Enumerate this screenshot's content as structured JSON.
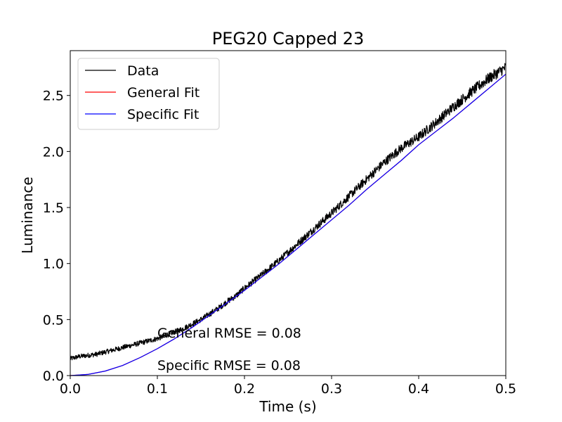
{
  "chart_data": {
    "type": "line",
    "title": "PEG20 Capped 23",
    "xlabel": "Time (s)",
    "ylabel": "Luminance",
    "xlim": [
      0.0,
      0.5
    ],
    "ylim": [
      0.0,
      2.9
    ],
    "xticks": [
      0.0,
      0.1,
      0.2,
      0.3,
      0.4,
      0.5
    ],
    "xtick_labels": [
      "0.0",
      "0.1",
      "0.2",
      "0.3",
      "0.4",
      "0.5"
    ],
    "yticks": [
      0.0,
      0.5,
      1.0,
      1.5,
      2.0,
      2.5
    ],
    "ytick_labels": [
      "0.0",
      "0.5",
      "1.0",
      "1.5",
      "2.0",
      "2.5"
    ],
    "grid": false,
    "legend_position": "upper-left",
    "series": [
      {
        "name": "Data",
        "color": "#000000",
        "noisy": true,
        "x": [
          0.0,
          0.01,
          0.02,
          0.03,
          0.04,
          0.05,
          0.06,
          0.07,
          0.08,
          0.09,
          0.1,
          0.11,
          0.12,
          0.13,
          0.14,
          0.15,
          0.16,
          0.17,
          0.18,
          0.19,
          0.2,
          0.22,
          0.24,
          0.26,
          0.28,
          0.3,
          0.32,
          0.34,
          0.36,
          0.38,
          0.4,
          0.42,
          0.44,
          0.46,
          0.48,
          0.5
        ],
        "y": [
          0.15,
          0.17,
          0.18,
          0.19,
          0.21,
          0.23,
          0.25,
          0.27,
          0.29,
          0.31,
          0.33,
          0.36,
          0.39,
          0.42,
          0.46,
          0.5,
          0.55,
          0.6,
          0.66,
          0.71,
          0.78,
          0.9,
          1.03,
          1.17,
          1.31,
          1.45,
          1.6,
          1.75,
          1.9,
          2.03,
          2.13,
          2.26,
          2.4,
          2.53,
          2.65,
          2.75
        ]
      },
      {
        "name": "General Fit",
        "color": "#ff0000",
        "x": [
          0.0,
          0.02,
          0.04,
          0.06,
          0.08,
          0.1,
          0.12,
          0.14,
          0.16,
          0.18,
          0.2,
          0.22,
          0.24,
          0.26,
          0.28,
          0.3,
          0.32,
          0.34,
          0.36,
          0.38,
          0.4,
          0.42,
          0.44,
          0.46,
          0.48,
          0.5
        ],
        "y": [
          0.0,
          0.01,
          0.04,
          0.09,
          0.16,
          0.24,
          0.33,
          0.43,
          0.54,
          0.65,
          0.76,
          0.88,
          1.0,
          1.13,
          1.26,
          1.39,
          1.52,
          1.66,
          1.79,
          1.92,
          2.06,
          2.18,
          2.3,
          2.43,
          2.56,
          2.69
        ]
      },
      {
        "name": "Specific Fit",
        "color": "#0000ff",
        "x": [
          0.0,
          0.02,
          0.04,
          0.06,
          0.08,
          0.1,
          0.12,
          0.14,
          0.16,
          0.18,
          0.2,
          0.22,
          0.24,
          0.26,
          0.28,
          0.3,
          0.32,
          0.34,
          0.36,
          0.38,
          0.4,
          0.42,
          0.44,
          0.46,
          0.48,
          0.5
        ],
        "y": [
          0.0,
          0.01,
          0.04,
          0.09,
          0.16,
          0.24,
          0.33,
          0.43,
          0.54,
          0.65,
          0.76,
          0.88,
          1.0,
          1.13,
          1.26,
          1.39,
          1.52,
          1.66,
          1.79,
          1.92,
          2.06,
          2.18,
          2.3,
          2.43,
          2.56,
          2.69
        ]
      }
    ],
    "annotations": [
      {
        "text": "General RMSE = 0.08",
        "x": 0.1,
        "y": 0.34
      },
      {
        "text": "Specific RMSE = 0.08",
        "x": 0.1,
        "y": 0.05
      }
    ]
  }
}
